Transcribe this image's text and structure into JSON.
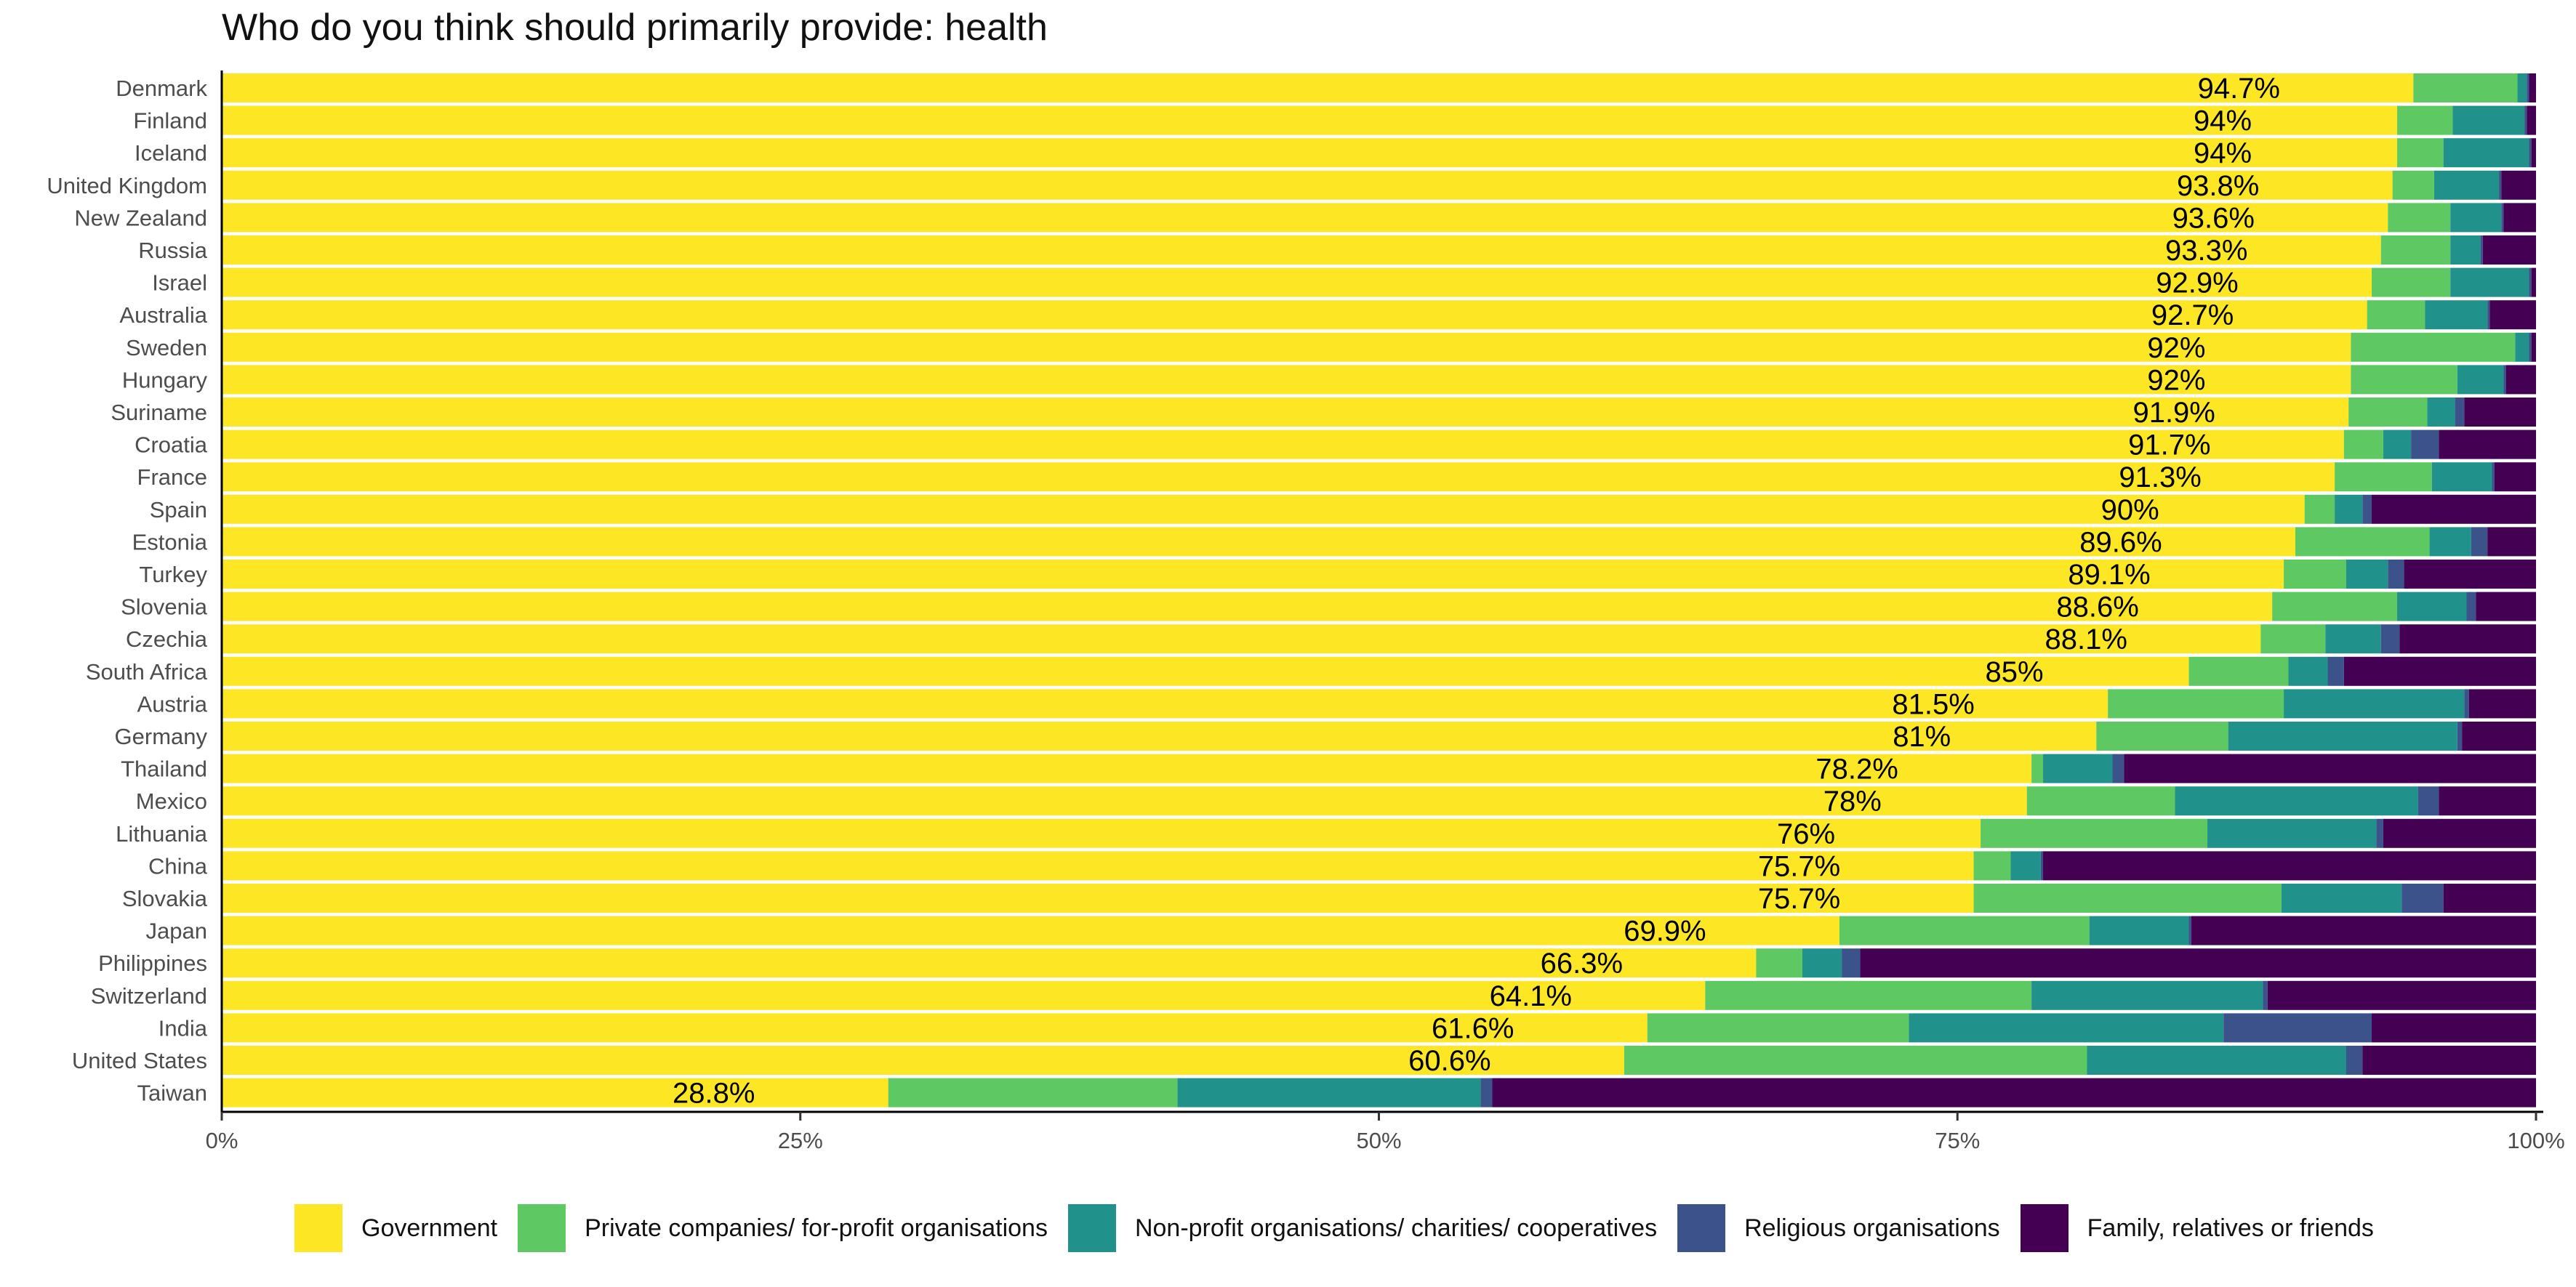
{
  "chart_data": {
    "type": "bar",
    "orientation": "horizontal",
    "stacked": true,
    "title": "Who do you think should primarily provide: health",
    "xlim": [
      0,
      100
    ],
    "x_ticks": [
      "0%",
      "25%",
      "50%",
      "75%",
      "100%"
    ],
    "categories": [
      "Denmark",
      "Finland",
      "Iceland",
      "United Kingdom",
      "New Zealand",
      "Russia",
      "Israel",
      "Australia",
      "Sweden",
      "Hungary",
      "Suriname",
      "Croatia",
      "France",
      "Spain",
      "Estonia",
      "Turkey",
      "Slovenia",
      "Czechia",
      "South Africa",
      "Austria",
      "Germany",
      "Thailand",
      "Mexico",
      "Lithuania",
      "China",
      "Slovakia",
      "Japan",
      "Philippines",
      "Switzerland",
      "India",
      "United States",
      "Taiwan"
    ],
    "value_labels": [
      "94.7%",
      "94%",
      "94%",
      "93.8%",
      "93.6%",
      "93.3%",
      "92.9%",
      "92.7%",
      "92%",
      "92%",
      "91.9%",
      "91.7%",
      "91.3%",
      "90%",
      "89.6%",
      "89.1%",
      "88.6%",
      "88.1%",
      "85%",
      "81.5%",
      "81%",
      "78.2%",
      "78%",
      "76%",
      "75.7%",
      "75.7%",
      "69.9%",
      "66.3%",
      "64.1%",
      "61.6%",
      "60.6%",
      "28.8%"
    ],
    "series": [
      {
        "name": "Government",
        "color": "#FDE725",
        "values": [
          94.7,
          94,
          94,
          93.8,
          93.6,
          93.3,
          92.9,
          92.7,
          92,
          92,
          91.9,
          91.7,
          91.3,
          90,
          89.6,
          89.1,
          88.6,
          88.1,
          85,
          81.5,
          81,
          78.2,
          78,
          76,
          75.7,
          75.7,
          69.9,
          66.3,
          64.1,
          61.6,
          60.6,
          28.8
        ]
      },
      {
        "name": "Private companies/ for-profit organisations",
        "color": "#5EC962",
        "values": [
          4.5,
          2.4,
          2.0,
          1.8,
          2.7,
          3.0,
          3.4,
          2.5,
          7.1,
          4.6,
          3.4,
          1.7,
          4.2,
          1.3,
          5.8,
          2.7,
          5.4,
          2.8,
          4.3,
          7.6,
          5.7,
          0.5,
          6.4,
          9.8,
          1.6,
          13.3,
          10.8,
          2.0,
          14.1,
          11.3,
          20.0,
          12.5
        ]
      },
      {
        "name": "Non-profit organisations/ charities/ cooperatives",
        "color": "#21918C",
        "values": [
          0.4,
          3.1,
          3.7,
          2.8,
          2.2,
          1.3,
          3.4,
          2.7,
          0.6,
          2.0,
          1.2,
          1.2,
          2.6,
          1.2,
          1.8,
          1.8,
          3.0,
          2.4,
          1.7,
          7.8,
          9.9,
          3.0,
          10.5,
          7.3,
          1.3,
          5.2,
          4.3,
          1.7,
          10.0,
          13.6,
          11.2,
          13.1
        ]
      },
      {
        "name": "Religious organisations",
        "color": "#3B528B",
        "values": [
          0.1,
          0.1,
          0.1,
          0.1,
          0.1,
          0.1,
          0.1,
          0.1,
          0.1,
          0.1,
          0.4,
          1.2,
          0.1,
          0.4,
          0.7,
          0.7,
          0.4,
          0.8,
          0.7,
          0.2,
          0.2,
          0.5,
          0.9,
          0.3,
          0.1,
          1.8,
          0.1,
          0.8,
          0.2,
          6.4,
          0.7,
          0.5
        ]
      },
      {
        "name": "Family, relatives or friends",
        "color": "#440154",
        "values": [
          0.3,
          0.4,
          0.2,
          1.5,
          1.4,
          2.3,
          0.2,
          2.0,
          0.2,
          1.3,
          3.1,
          4.2,
          1.8,
          7.1,
          2.1,
          5.7,
          2.6,
          5.9,
          8.3,
          2.9,
          3.2,
          17.8,
          4.2,
          6.6,
          21.3,
          4.0,
          14.9,
          29.2,
          11.6,
          7.1,
          7.5,
          45.1
        ]
      }
    ]
  }
}
